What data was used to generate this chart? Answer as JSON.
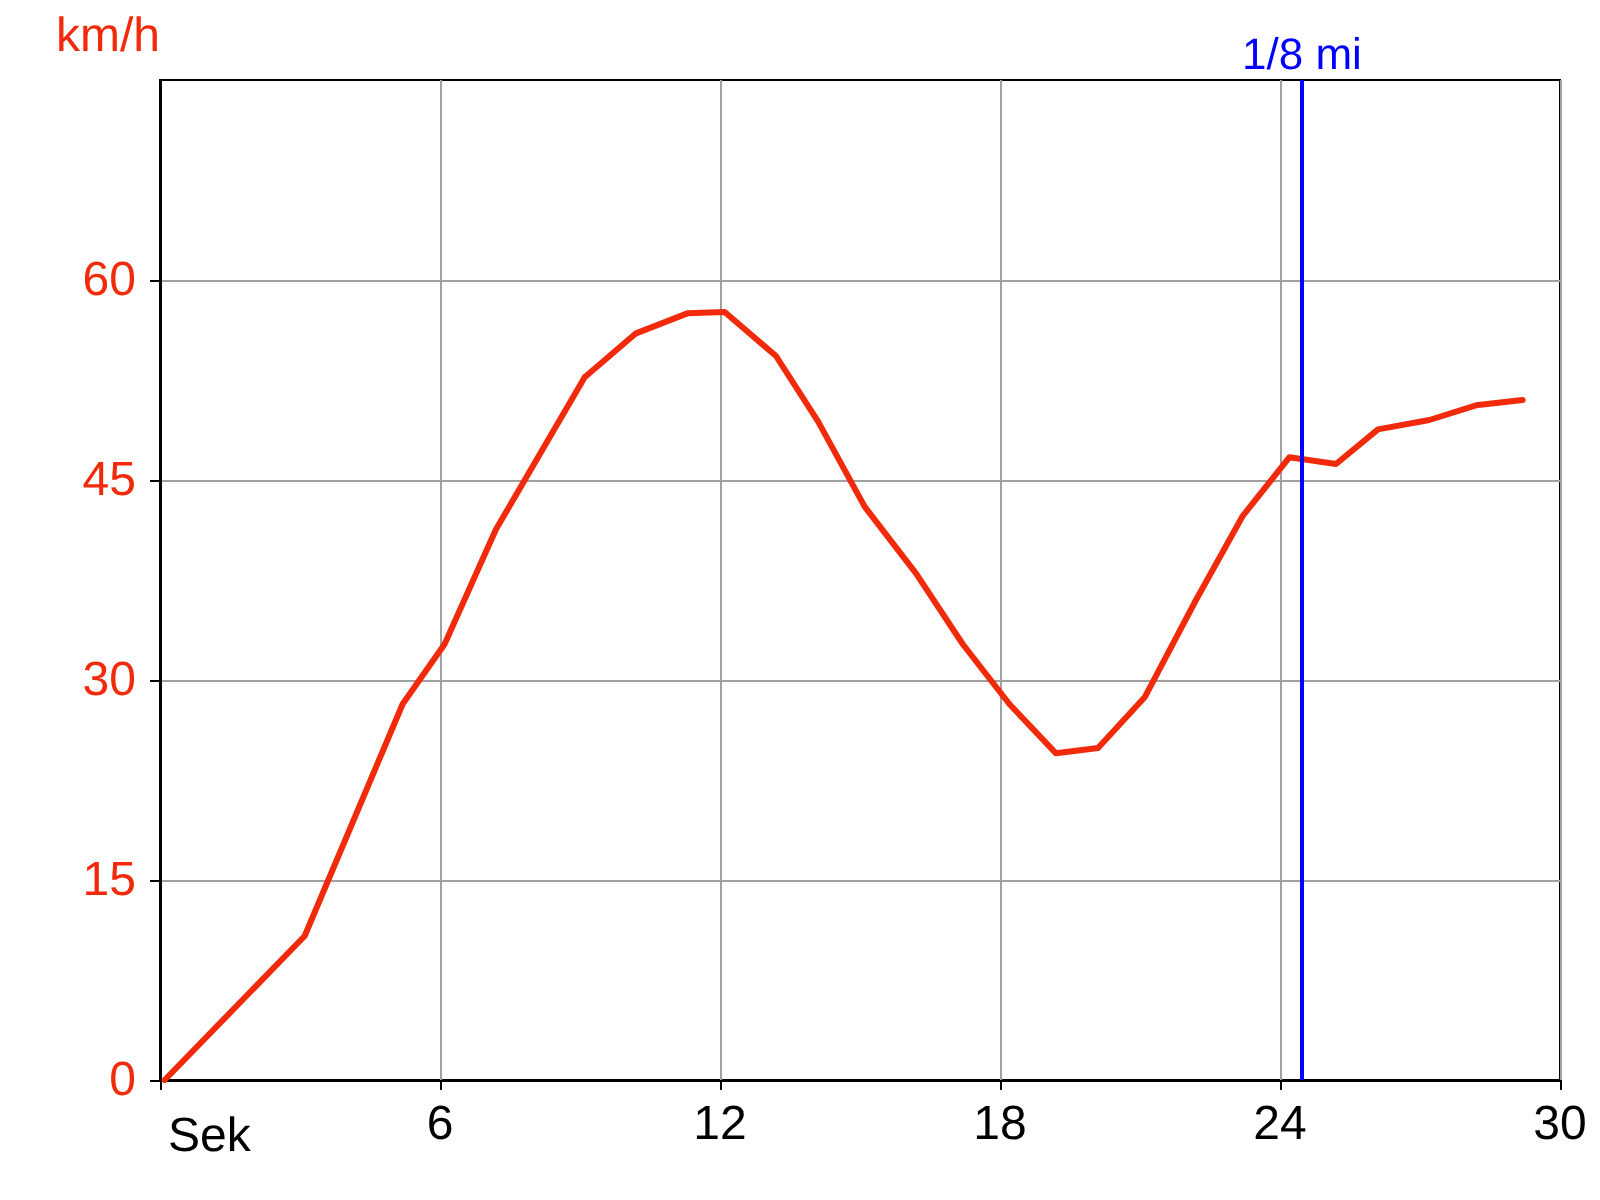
{
  "chart_data": {
    "type": "line",
    "xlabel": "Sek",
    "ylabel": "km/h",
    "series": [
      {
        "color": "#f02a0a",
        "x": [
          0.1,
          3.1,
          5.2,
          6.1,
          7.2,
          9.1,
          10.2,
          11.3,
          12.1,
          13.2,
          14.1,
          15.1,
          16.2,
          17.2,
          18.2,
          19.2,
          20.1,
          21.1,
          22.2,
          23.2,
          24.2,
          25.2,
          26.1,
          27.2,
          28.2,
          29.2
        ],
        "values": [
          0,
          10.8,
          28.2,
          32.7,
          41.3,
          52.7,
          56,
          57.5,
          57.6,
          54.3,
          49.4,
          43,
          38,
          32.7,
          28.2,
          24.5,
          24.9,
          28.7,
          36,
          42.3,
          46.7,
          46.2,
          48.8,
          49.5,
          50.6,
          51
        ]
      }
    ],
    "xlim": [
      0,
      30
    ],
    "xticks": [
      {
        "value": 0,
        "label": null
      },
      6,
      12,
      18,
      24,
      30
    ],
    "ylim": [
      0,
      75
    ],
    "yticks": [
      0,
      15,
      30,
      45,
      60
    ],
    "ref_lines": [
      {
        "axis": "x",
        "value": 24.47,
        "label": "1/8 mi",
        "color": "#0000ff"
      }
    ],
    "grid": true,
    "marker": "none",
    "line_style": "solid"
  }
}
